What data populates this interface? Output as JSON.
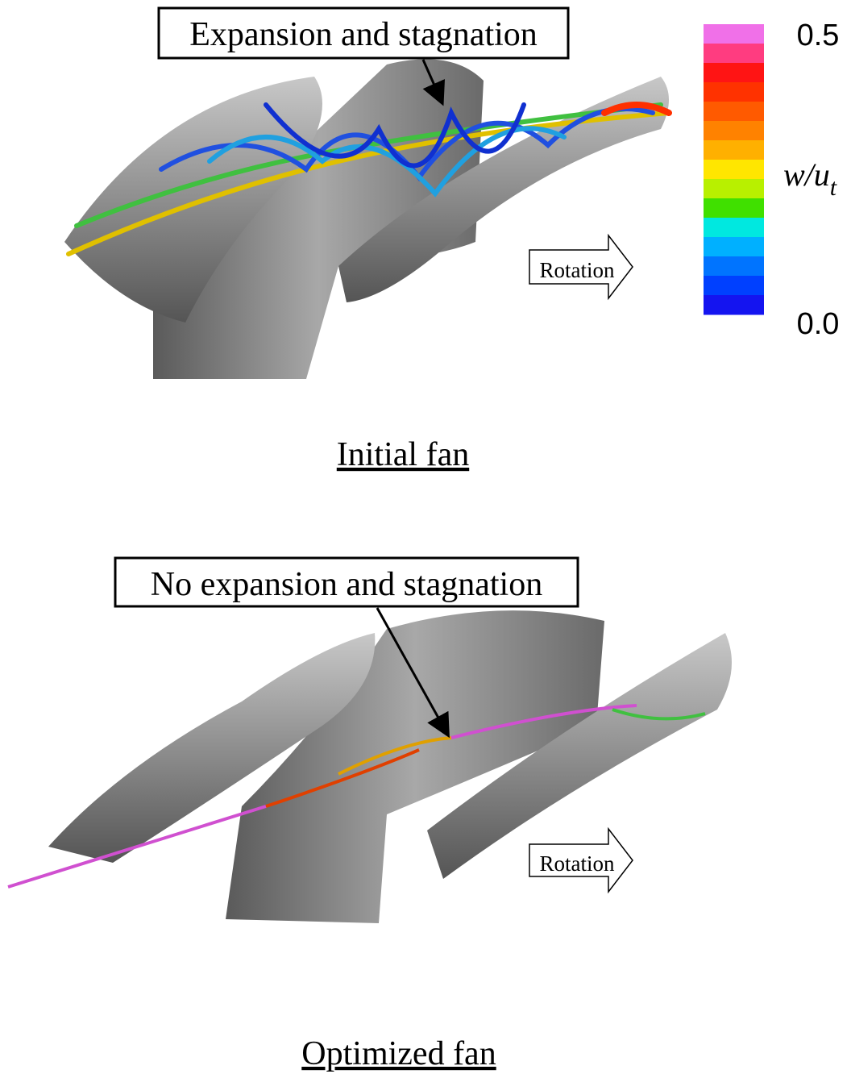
{
  "top_panel": {
    "annotation": "Expansion and stagnation",
    "rotation": "Rotation",
    "caption": "Initial fan"
  },
  "bottom_panel": {
    "annotation": "No expansion and stagnation",
    "rotation": "Rotation",
    "caption": "Optimized fan"
  },
  "colorbar": {
    "top_label": "0.5",
    "bottom_label": "0.0",
    "variable": "w/u",
    "subscript": "t",
    "colors": [
      "#f070e8",
      "#ff3c80",
      "#ff1414",
      "#ff3200",
      "#ff5a00",
      "#ff8200",
      "#ffb000",
      "#ffe600",
      "#b8f000",
      "#40e000",
      "#00e8e0",
      "#00b0ff",
      "#0074ff",
      "#0040ff",
      "#1414f0"
    ]
  }
}
